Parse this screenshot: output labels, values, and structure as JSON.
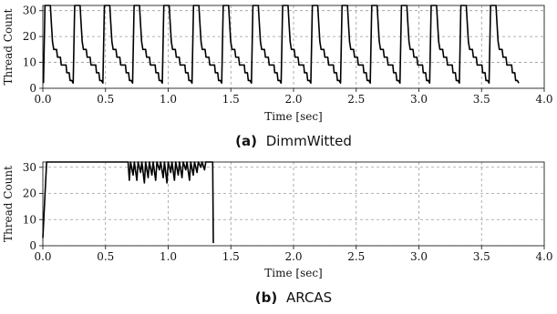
{
  "chart_data": [
    {
      "type": "line",
      "caption_tag": "(a)",
      "caption_name": "DimmWitted",
      "xlabel": "Time [sec]",
      "ylabel": "Thread Count",
      "xlim": [
        0.0,
        4.0
      ],
      "ylim": [
        0,
        32
      ],
      "xticks": [
        "0.0",
        "0.5",
        "1.0",
        "1.5",
        "2.0",
        "2.5",
        "3.0",
        "3.5",
        "4.0"
      ],
      "yticks": [
        "0",
        "10",
        "20",
        "30"
      ],
      "grid": true,
      "series": [
        {
          "cycle_start": 0.005,
          "cycle_period": 0.237,
          "cycle_count": 16,
          "end_time": 3.85,
          "cycle_profile": [
            [
              0.0,
              2
            ],
            [
              0.012,
              32
            ],
            [
              0.055,
              32
            ],
            [
              0.062,
              26
            ],
            [
              0.072,
              18
            ],
            [
              0.082,
              15
            ],
            [
              0.104,
              15
            ],
            [
              0.112,
              12
            ],
            [
              0.135,
              12
            ],
            [
              0.142,
              9
            ],
            [
              0.18,
              9
            ],
            [
              0.186,
              6
            ],
            [
              0.205,
              6
            ],
            [
              0.212,
              3
            ],
            [
              0.226,
              3
            ],
            [
              0.237,
              2
            ]
          ]
        }
      ]
    },
    {
      "type": "line",
      "caption_tag": "(b)",
      "caption_name": "ARCAS",
      "xlabel": "Time [sec]",
      "ylabel": "Thread Count",
      "xlim": [
        0.0,
        4.0
      ],
      "ylim": [
        0,
        32
      ],
      "xticks": [
        "0.0",
        "0.5",
        "1.0",
        "1.5",
        "2.0",
        "2.5",
        "3.0",
        "3.5",
        "4.0"
      ],
      "yticks": [
        "0",
        "10",
        "20",
        "30"
      ],
      "grid": true,
      "series": [
        {
          "points": [
            [
              0.0,
              3
            ],
            [
              0.03,
              32
            ],
            [
              0.68,
              32
            ],
            [
              0.69,
              25
            ],
            [
              0.7,
              32
            ],
            [
              0.72,
              27
            ],
            [
              0.73,
              32
            ],
            [
              0.75,
              25
            ],
            [
              0.76,
              32
            ],
            [
              0.78,
              28
            ],
            [
              0.79,
              32
            ],
            [
              0.81,
              24
            ],
            [
              0.82,
              32
            ],
            [
              0.84,
              26
            ],
            [
              0.85,
              32
            ],
            [
              0.87,
              27
            ],
            [
              0.88,
              32
            ],
            [
              0.9,
              25
            ],
            [
              0.91,
              32
            ],
            [
              0.93,
              29
            ],
            [
              0.94,
              32
            ],
            [
              0.96,
              26
            ],
            [
              0.97,
              32
            ],
            [
              0.99,
              24
            ],
            [
              1.0,
              32
            ],
            [
              1.02,
              28
            ],
            [
              1.03,
              32
            ],
            [
              1.05,
              25
            ],
            [
              1.06,
              32
            ],
            [
              1.08,
              27
            ],
            [
              1.09,
              32
            ],
            [
              1.11,
              26
            ],
            [
              1.12,
              32
            ],
            [
              1.14,
              29
            ],
            [
              1.15,
              32
            ],
            [
              1.17,
              25
            ],
            [
              1.18,
              32
            ],
            [
              1.2,
              27
            ],
            [
              1.21,
              32
            ],
            [
              1.23,
              28
            ],
            [
              1.24,
              32
            ],
            [
              1.26,
              30
            ],
            [
              1.27,
              32
            ],
            [
              1.29,
              29
            ],
            [
              1.3,
              32
            ],
            [
              1.355,
              32
            ],
            [
              1.36,
              1
            ]
          ]
        }
      ]
    }
  ]
}
